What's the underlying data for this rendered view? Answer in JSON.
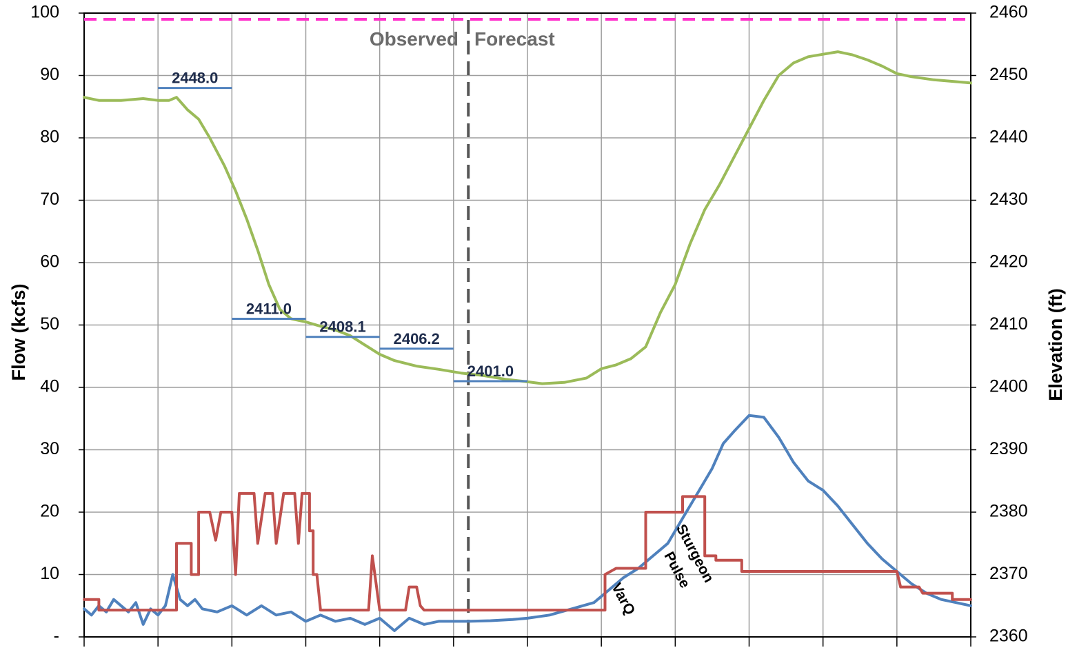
{
  "chart_data": {
    "type": "line",
    "title": "",
    "y_left": {
      "label": "Flow (kcfs)",
      "ticks": [
        "-",
        "10",
        "20",
        "30",
        "40",
        "50",
        "60",
        "70",
        "80",
        "90",
        "100"
      ],
      "range": [
        0,
        100
      ]
    },
    "y_right": {
      "label": "Elevation (ft)",
      "ticks": [
        "2360",
        "2370",
        "2380",
        "2390",
        "2400",
        "2410",
        "2420",
        "2430",
        "2440",
        "2450",
        "2460"
      ],
      "range": [
        2360,
        2460
      ]
    },
    "x": {
      "range": [
        0,
        12
      ],
      "ticks": [
        0,
        1,
        2,
        3,
        4,
        5,
        6,
        7,
        8,
        9,
        10,
        11,
        12
      ],
      "tick_labels": []
    },
    "grid": true,
    "divider": {
      "x": 5.2,
      "left_label": "Observed",
      "right_label": "Forecast"
    },
    "reference_line": {
      "axis": "left",
      "value": 99,
      "color": "#ff33cc",
      "dashed": true
    },
    "series": [
      {
        "color": "#9bbb59",
        "axis": "right",
        "points": [
          [
            0,
            2446.5
          ],
          [
            0.2,
            2446
          ],
          [
            0.5,
            2446
          ],
          [
            0.8,
            2446.3
          ],
          [
            1.0,
            2446
          ],
          [
            1.15,
            2446
          ],
          [
            1.25,
            2446.5
          ],
          [
            1.4,
            2444.5
          ],
          [
            1.55,
            2443
          ],
          [
            1.7,
            2440
          ],
          [
            1.9,
            2435.5
          ],
          [
            2.05,
            2431.5
          ],
          [
            2.2,
            2427
          ],
          [
            2.35,
            2422
          ],
          [
            2.5,
            2416.5
          ],
          [
            2.65,
            2412.5
          ],
          [
            2.8,
            2411
          ],
          [
            3.0,
            2410.5
          ],
          [
            3.2,
            2409.8
          ],
          [
            3.4,
            2409.2
          ],
          [
            3.6,
            2408.3
          ],
          [
            3.8,
            2406.8
          ],
          [
            4.0,
            2405.3
          ],
          [
            4.2,
            2404.3
          ],
          [
            4.5,
            2403.4
          ],
          [
            4.8,
            2402.9
          ],
          [
            5.1,
            2402.3
          ],
          [
            5.4,
            2401.9
          ],
          [
            5.7,
            2401.3
          ],
          [
            6.0,
            2400.9
          ],
          [
            6.2,
            2400.6
          ],
          [
            6.5,
            2400.8
          ],
          [
            6.8,
            2401.5
          ],
          [
            7.0,
            2403
          ],
          [
            7.2,
            2403.6
          ],
          [
            7.4,
            2404.6
          ],
          [
            7.6,
            2406.5
          ],
          [
            7.8,
            2412
          ],
          [
            8.0,
            2416.5
          ],
          [
            8.2,
            2423
          ],
          [
            8.4,
            2428.5
          ],
          [
            8.6,
            2432.5
          ],
          [
            8.8,
            2437
          ],
          [
            9.0,
            2441.5
          ],
          [
            9.2,
            2446
          ],
          [
            9.4,
            2450
          ],
          [
            9.6,
            2452
          ],
          [
            9.8,
            2453
          ],
          [
            10.0,
            2453.4
          ],
          [
            10.2,
            2453.8
          ],
          [
            10.4,
            2453.3
          ],
          [
            10.6,
            2452.5
          ],
          [
            10.8,
            2451.5
          ],
          [
            11.0,
            2450.3
          ],
          [
            11.2,
            2449.8
          ],
          [
            11.5,
            2449.3
          ],
          [
            11.8,
            2449
          ],
          [
            12.0,
            2448.8
          ]
        ]
      },
      {
        "color": "#4f81bd",
        "axis": "left",
        "points": [
          [
            0,
            4.5
          ],
          [
            0.1,
            3.5
          ],
          [
            0.2,
            5
          ],
          [
            0.3,
            4
          ],
          [
            0.4,
            6
          ],
          [
            0.5,
            5
          ],
          [
            0.6,
            4
          ],
          [
            0.7,
            5.5
          ],
          [
            0.8,
            2
          ],
          [
            0.9,
            4.5
          ],
          [
            1.0,
            3.5
          ],
          [
            1.1,
            5
          ],
          [
            1.2,
            10
          ],
          [
            1.3,
            6
          ],
          [
            1.4,
            5
          ],
          [
            1.5,
            6
          ],
          [
            1.6,
            4.5
          ],
          [
            1.8,
            4
          ],
          [
            2.0,
            5
          ],
          [
            2.2,
            3.5
          ],
          [
            2.4,
            5
          ],
          [
            2.6,
            3.5
          ],
          [
            2.8,
            4
          ],
          [
            3.0,
            2.5
          ],
          [
            3.2,
            3.5
          ],
          [
            3.4,
            2.5
          ],
          [
            3.6,
            3
          ],
          [
            3.8,
            2
          ],
          [
            4.0,
            3
          ],
          [
            4.2,
            1
          ],
          [
            4.4,
            3
          ],
          [
            4.6,
            2
          ],
          [
            4.8,
            2.5
          ],
          [
            5.0,
            2.5
          ],
          [
            5.2,
            2.5
          ],
          [
            5.5,
            2.6
          ],
          [
            5.8,
            2.8
          ],
          [
            6.0,
            3
          ],
          [
            6.3,
            3.5
          ],
          [
            6.6,
            4.5
          ],
          [
            6.9,
            5.5
          ],
          [
            7.1,
            7.5
          ],
          [
            7.3,
            9.5
          ],
          [
            7.5,
            11
          ],
          [
            7.7,
            13
          ],
          [
            7.9,
            15
          ],
          [
            8.1,
            19
          ],
          [
            8.3,
            23
          ],
          [
            8.5,
            27
          ],
          [
            8.65,
            31
          ],
          [
            8.8,
            33
          ],
          [
            9.0,
            35.5
          ],
          [
            9.2,
            35.2
          ],
          [
            9.4,
            32
          ],
          [
            9.6,
            28
          ],
          [
            9.8,
            25
          ],
          [
            10.0,
            23.5
          ],
          [
            10.2,
            21
          ],
          [
            10.4,
            18
          ],
          [
            10.6,
            15
          ],
          [
            10.8,
            12.5
          ],
          [
            11.0,
            10.5
          ],
          [
            11.2,
            8.5
          ],
          [
            11.4,
            7
          ],
          [
            11.6,
            6
          ],
          [
            11.8,
            5.5
          ],
          [
            12.0,
            5
          ]
        ]
      },
      {
        "color": "#c0504d",
        "axis": "left",
        "points": [
          [
            0,
            6
          ],
          [
            0.2,
            6
          ],
          [
            0.2,
            4.3
          ],
          [
            1.25,
            4.3
          ],
          [
            1.25,
            4.3
          ],
          [
            1.25,
            15
          ],
          [
            1.45,
            15
          ],
          [
            1.45,
            10
          ],
          [
            1.55,
            10
          ],
          [
            1.55,
            20
          ],
          [
            1.7,
            20
          ],
          [
            1.78,
            15.5
          ],
          [
            1.85,
            20
          ],
          [
            2.0,
            20
          ],
          [
            2.05,
            10
          ],
          [
            2.1,
            23
          ],
          [
            2.3,
            23
          ],
          [
            2.35,
            15
          ],
          [
            2.45,
            23
          ],
          [
            2.55,
            23
          ],
          [
            2.6,
            15
          ],
          [
            2.7,
            23
          ],
          [
            2.85,
            23
          ],
          [
            2.9,
            15
          ],
          [
            2.95,
            23
          ],
          [
            3.05,
            23
          ],
          [
            3.05,
            17
          ],
          [
            3.1,
            17
          ],
          [
            3.1,
            10
          ],
          [
            3.15,
            10
          ],
          [
            3.2,
            4.3
          ],
          [
            3.8,
            4.3
          ],
          [
            3.85,
            4.3
          ],
          [
            3.9,
            13
          ],
          [
            4.0,
            4.3
          ],
          [
            4.35,
            4.3
          ],
          [
            4.4,
            8
          ],
          [
            4.5,
            8
          ],
          [
            4.55,
            5
          ],
          [
            4.6,
            4.3
          ],
          [
            5.0,
            4.3
          ],
          [
            5.5,
            4.3
          ],
          [
            6.0,
            4.3
          ],
          [
            7.0,
            4.3
          ],
          [
            7.05,
            4.3
          ],
          [
            7.05,
            10
          ],
          [
            7.2,
            11
          ],
          [
            7.6,
            11
          ],
          [
            7.6,
            20
          ],
          [
            8.1,
            20
          ],
          [
            8.1,
            22.5
          ],
          [
            8.4,
            22.5
          ],
          [
            8.4,
            13
          ],
          [
            8.55,
            13
          ],
          [
            8.55,
            12.3
          ],
          [
            8.9,
            12.3
          ],
          [
            8.9,
            10.5
          ],
          [
            10.0,
            10.5
          ],
          [
            11.0,
            10.5
          ],
          [
            11.05,
            8
          ],
          [
            11.3,
            8
          ],
          [
            11.35,
            7
          ],
          [
            11.75,
            7
          ],
          [
            11.75,
            6
          ],
          [
            12.0,
            6
          ]
        ]
      }
    ],
    "annotations": [
      {
        "text": "2448.0",
        "x_start": 1.0,
        "x_end": 2.0,
        "value": 2448.0
      },
      {
        "text": "2411.0",
        "x_start": 2.0,
        "x_end": 3.0,
        "value": 2411.0
      },
      {
        "text": "2408.1",
        "x_start": 3.0,
        "x_end": 4.0,
        "value": 2408.1
      },
      {
        "text": "2406.2",
        "x_start": 4.0,
        "x_end": 5.0,
        "value": 2406.2
      },
      {
        "text": "2401.0",
        "x_start": 5.0,
        "x_end": 6.0,
        "value": 2401.0
      }
    ],
    "text_annotations": [
      "VarQ",
      "Sturgeon",
      "Pulse"
    ]
  }
}
